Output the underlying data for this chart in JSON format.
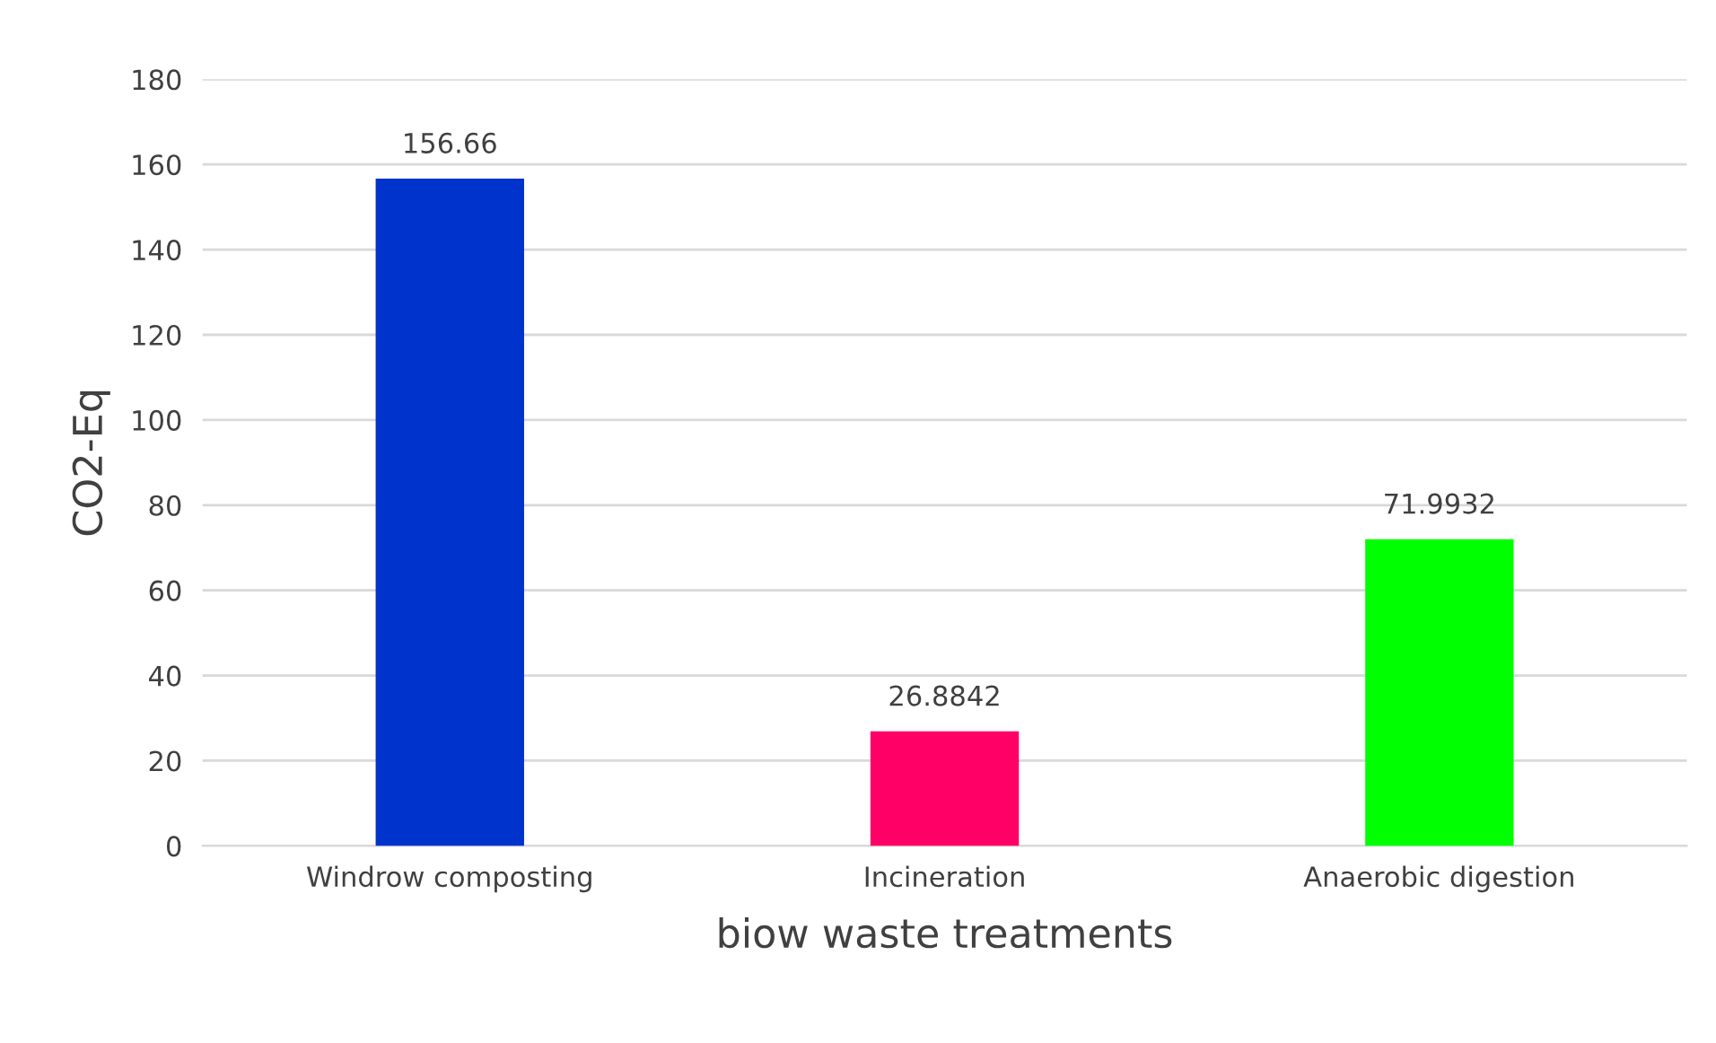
{
  "chart_data": {
    "type": "bar",
    "xlabel": "biow waste treatments",
    "ylabel": "CO2-Eq",
    "categories": [
      "Windrow composting",
      "Incineration",
      "Anaerobic digestion"
    ],
    "values": [
      156.66,
      26.8842,
      71.9932
    ],
    "colors": [
      "#0033cc",
      "#ff0066",
      "#00ff00"
    ],
    "ylim": [
      0,
      180
    ],
    "yticks": [
      0,
      20,
      40,
      60,
      80,
      100,
      120,
      140,
      160,
      180
    ],
    "grid": "y",
    "data_labels": true
  }
}
